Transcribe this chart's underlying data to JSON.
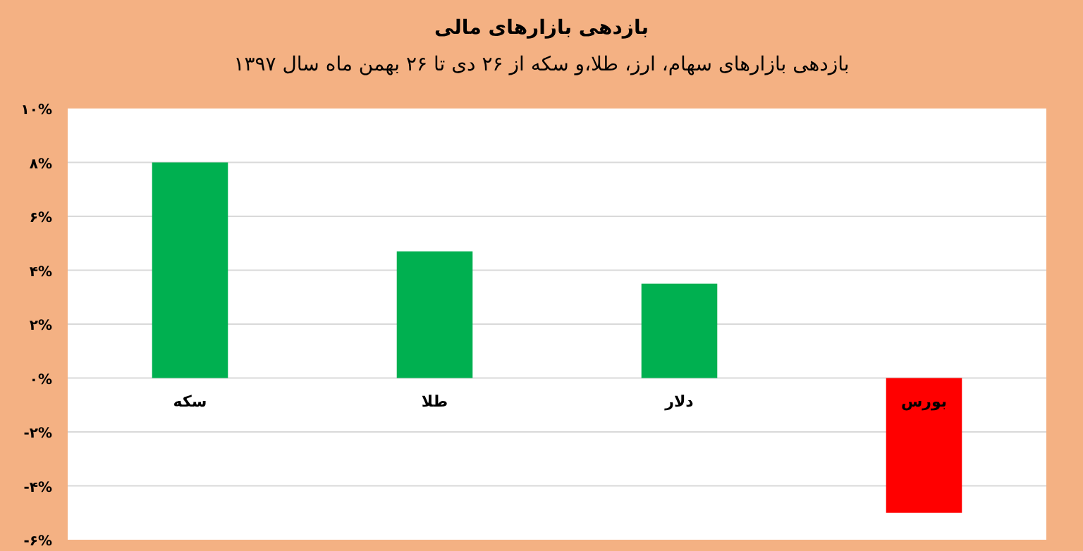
{
  "chart_data": {
    "type": "bar",
    "title": "بازدهی بازارهای مالی",
    "subtitle": "بازدهی بازارهای سهام، ارز، طلا،و سکه از ۲۶ دی تا ۲۶ بهمن ماه سال ۱۳۹۷",
    "categories": [
      "سکه",
      "طلا",
      "دلار",
      "بورس"
    ],
    "values": [
      8.0,
      4.7,
      3.5,
      -5.0
    ],
    "colors": [
      "#00b050",
      "#00b050",
      "#00b050",
      "#ff0000"
    ],
    "ylim": [
      -6,
      10
    ],
    "yticks": [
      {
        "value": -6,
        "label": "-۶%"
      },
      {
        "value": -4,
        "label": "-۴%"
      },
      {
        "value": -2,
        "label": "-۲%"
      },
      {
        "value": 0,
        "label": "۰%"
      },
      {
        "value": 2,
        "label": "۲%"
      },
      {
        "value": 4,
        "label": "۴%"
      },
      {
        "value": 6,
        "label": "۶%"
      },
      {
        "value": 8,
        "label": "۸%"
      },
      {
        "value": 10,
        "label": "۱۰%"
      }
    ],
    "grid": "y"
  }
}
